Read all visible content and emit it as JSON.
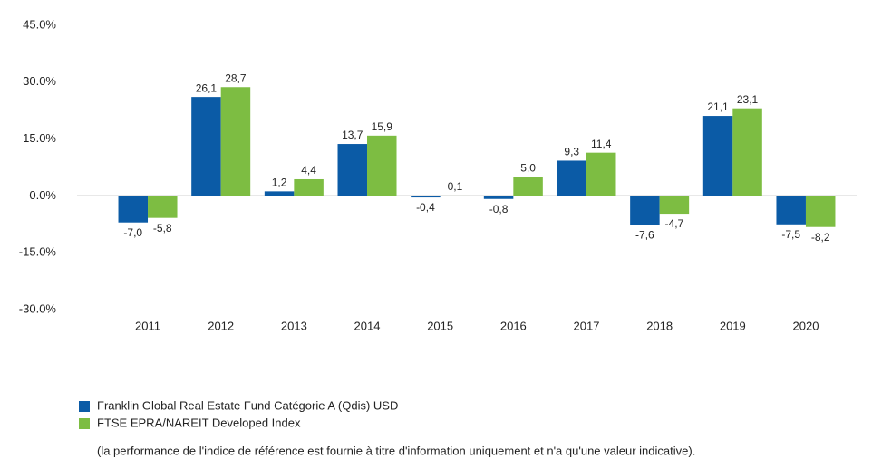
{
  "chart_data": {
    "type": "bar",
    "categories": [
      "2011",
      "2012",
      "2013",
      "2014",
      "2015",
      "2016",
      "2017",
      "2018",
      "2019",
      "2020"
    ],
    "series": [
      {
        "name": "Franklin Global Real Estate Fund Catégorie A (Qdis) USD",
        "color": "#0b5ba6",
        "values": [
          -7.0,
          26.1,
          1.2,
          13.7,
          -0.4,
          -0.8,
          9.3,
          -7.6,
          21.1,
          -7.5
        ],
        "value_labels": [
          "-7,0",
          "26,1",
          "1,2",
          "13,7",
          "-0,4",
          "-0,8",
          "9,3",
          "-7,6",
          "21,1",
          "-7,5"
        ]
      },
      {
        "name": "FTSE EPRA/NAREIT Developed Index",
        "color": "#7dbd42",
        "values": [
          -5.8,
          28.7,
          4.4,
          15.9,
          0.1,
          5.0,
          11.4,
          -4.7,
          23.1,
          -8.2
        ],
        "value_labels": [
          "-5,8",
          "28,7",
          "4,4",
          "15,9",
          "0,1",
          "5,0",
          "11,4",
          "-4,7",
          "23,1",
          "-8,2"
        ]
      }
    ],
    "ylim": [
      -30,
      45
    ],
    "yticks": [
      {
        "value": 45,
        "label": "45.0%"
      },
      {
        "value": 30,
        "label": "30.0%"
      },
      {
        "value": 15,
        "label": "15.0%"
      },
      {
        "value": 0,
        "label": "0.0%"
      },
      {
        "value": -15,
        "label": "-15.0%"
      },
      {
        "value": -30,
        "label": "-30.0%"
      }
    ],
    "note": "(la performance de l'indice de référence est fournie à titre d'information uniquement et n'a qu'une valeur indicative)."
  }
}
